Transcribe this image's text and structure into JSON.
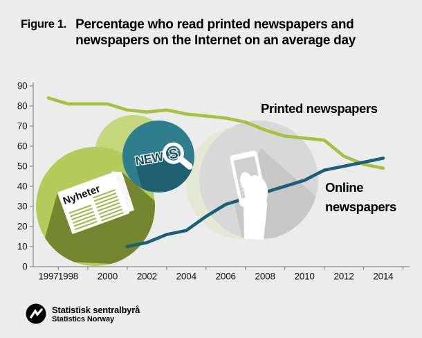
{
  "figure": {
    "label": "Figure 1.",
    "title_line1": "Percentage who read printed newspapers and",
    "title_line2": "newspapers on the Internet on an average day"
  },
  "chart_data": {
    "type": "line",
    "x": [
      1997,
      1998,
      1999,
      2000,
      2001,
      2002,
      2003,
      2004,
      2005,
      2006,
      2007,
      2008,
      2009,
      2010,
      2011,
      2012,
      2013,
      2014
    ],
    "x_tick_labels": [
      1997,
      1998,
      2000,
      2002,
      2004,
      2006,
      2008,
      2010,
      2012,
      2014
    ],
    "ylim": [
      0,
      90
    ],
    "y_ticks": [
      0,
      10,
      20,
      30,
      40,
      50,
      60,
      70,
      80,
      90
    ],
    "grid": false,
    "legend_position": "inline-annotations",
    "series": [
      {
        "name": "Printed newspapers",
        "values": [
          84,
          81,
          81,
          81,
          78,
          77,
          78,
          76,
          75,
          74,
          72,
          68,
          65,
          64,
          63,
          55,
          51,
          49
        ]
      },
      {
        "name": "Online newspapers",
        "values": [
          null,
          null,
          null,
          null,
          10,
          12,
          16,
          18,
          25,
          31,
          34,
          37,
          40,
          43,
          48,
          50,
          52,
          54
        ]
      }
    ]
  },
  "annotations": {
    "printed_label": "Printed newspapers",
    "online_label_line1": "Online",
    "online_label_line2": "newspapers"
  },
  "decor": {
    "newspaper_title": "Nyheter",
    "news_word": "NEW",
    "news_lens_letter": "S"
  },
  "footer": {
    "org_name": "Statistisk sentralbyrå",
    "org_name_en": "Statistics Norway"
  },
  "colors": {
    "background": "#ececec",
    "printed_line": "#a5c13d",
    "online_line": "#1b6079",
    "green_circle": "#b5cb5b",
    "green_shadow": "#76862f",
    "paper_lines": "#a3ba52",
    "teal_circle": "#2e7e8d",
    "teal_shadow": "#1f6173",
    "news_text": "#17525f",
    "gray_circle": "#d8d8d8",
    "gray_shadow": "#c7c7c7",
    "pale_circle": "#e3e9d2",
    "light_green_circle": "#c5d67c",
    "axis": "#8f8f8f",
    "logo": "#000000"
  }
}
